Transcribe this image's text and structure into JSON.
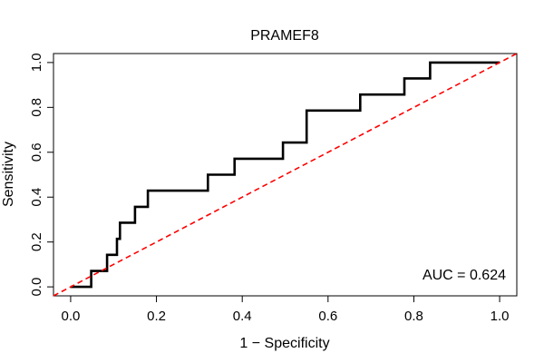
{
  "chart_data": {
    "type": "line",
    "title": "PRAMEF8",
    "xlabel": "1 − Specificity",
    "ylabel": "Sensitivity",
    "xlim": [
      -0.04,
      1.04
    ],
    "ylim": [
      -0.04,
      1.04
    ],
    "x_ticks": [
      0.0,
      0.2,
      0.4,
      0.6,
      0.8,
      1.0
    ],
    "x_tick_labels": [
      "0.0",
      "0.2",
      "0.4",
      "0.6",
      "0.8",
      "1.0"
    ],
    "y_ticks": [
      0.0,
      0.2,
      0.4,
      0.6,
      0.8,
      1.0
    ],
    "y_tick_labels": [
      "0.0",
      "0.2",
      "0.4",
      "0.6",
      "0.8",
      "1.0"
    ],
    "grid": false,
    "annotation": "AUC = 0.624",
    "series": [
      {
        "style": "step",
        "color": "#000000",
        "x": [
          0.0,
          0.048,
          0.048,
          0.085,
          0.085,
          0.108,
          0.108,
          0.115,
          0.115,
          0.15,
          0.15,
          0.18,
          0.18,
          0.32,
          0.32,
          0.382,
          0.382,
          0.495,
          0.495,
          0.55,
          0.55,
          0.675,
          0.675,
          0.778,
          0.778,
          0.838,
          0.838,
          1.0
        ],
        "y": [
          0.0,
          0.0,
          0.071,
          0.071,
          0.143,
          0.143,
          0.214,
          0.214,
          0.286,
          0.286,
          0.357,
          0.357,
          0.429,
          0.429,
          0.5,
          0.5,
          0.571,
          0.571,
          0.643,
          0.643,
          0.786,
          0.786,
          0.857,
          0.857,
          0.929,
          0.929,
          1.0,
          1.0
        ]
      },
      {
        "style": "dashed",
        "color": "#ff0000",
        "x": [
          -0.04,
          1.04
        ],
        "y": [
          -0.04,
          1.04
        ]
      }
    ]
  }
}
